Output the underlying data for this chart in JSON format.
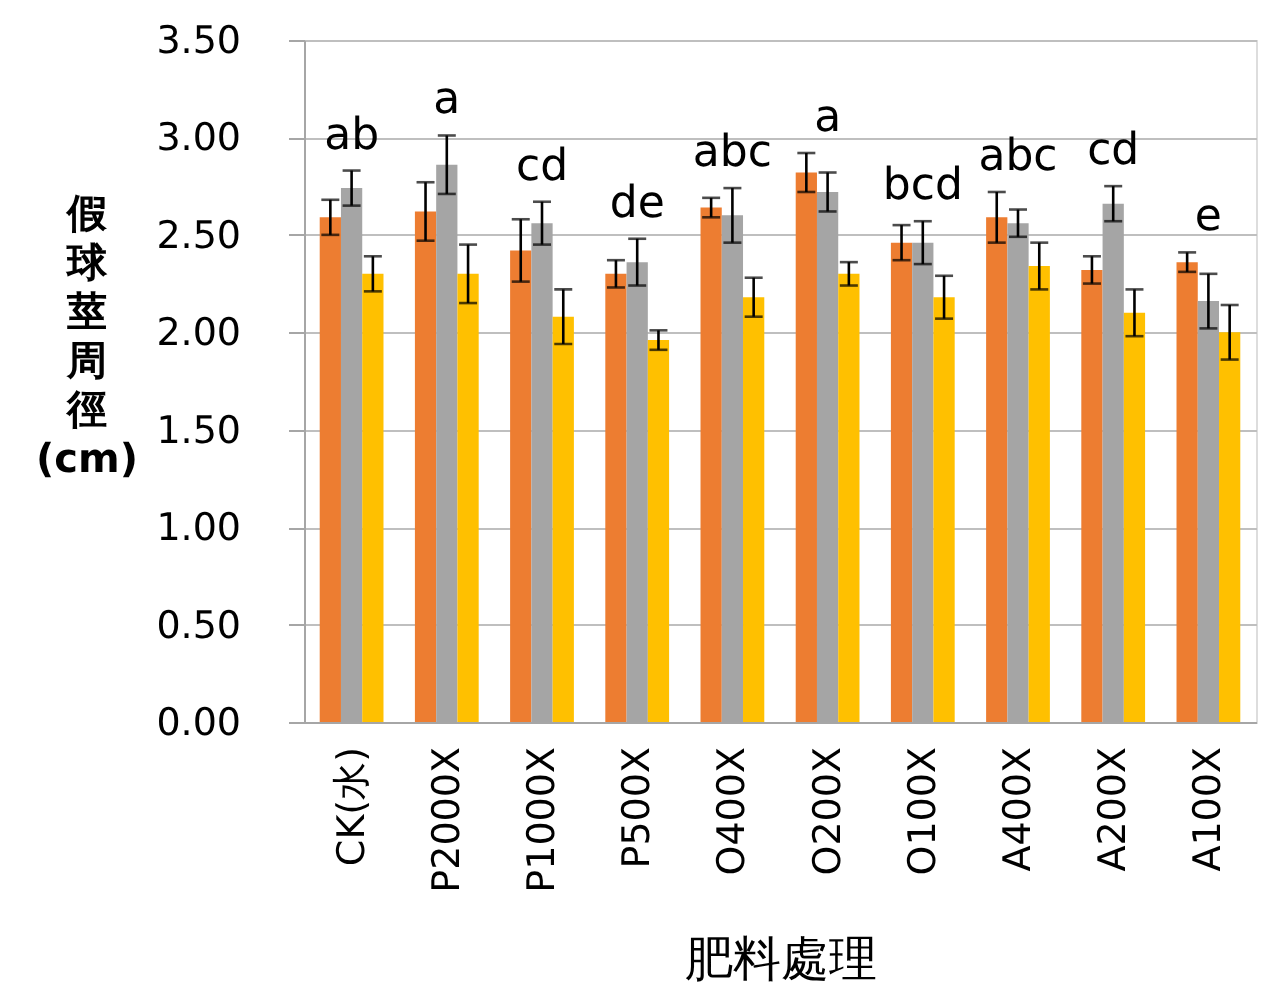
{
  "chart_data": {
    "type": "bar",
    "xlabel": "肥料處理",
    "ylabel": "假球莖周徑(cm)",
    "categories": [
      "CK(水)",
      "P2000X",
      "P1000X",
      "P500X",
      "O400X",
      "O200X",
      "O100X",
      "A400X",
      "A200X",
      "A100X"
    ],
    "series": [
      {
        "color": "#ed7d31",
        "values": [
          2.59,
          2.62,
          2.42,
          2.3,
          2.64,
          2.82,
          2.46,
          2.59,
          2.32,
          2.36
        ],
        "errors": [
          0.09,
          0.15,
          0.16,
          0.07,
          0.05,
          0.1,
          0.09,
          0.13,
          0.07,
          0.05
        ]
      },
      {
        "color": "#a5a5a5",
        "values": [
          2.74,
          2.86,
          2.56,
          2.36,
          2.6,
          2.72,
          2.46,
          2.56,
          2.66,
          2.16
        ],
        "errors": [
          0.09,
          0.15,
          0.11,
          0.12,
          0.14,
          0.1,
          0.11,
          0.07,
          0.09,
          0.14
        ]
      },
      {
        "color": "#ffc000",
        "values": [
          2.3,
          2.3,
          2.08,
          1.96,
          2.18,
          2.3,
          2.18,
          2.34,
          2.1,
          2.0
        ],
        "errors": [
          0.09,
          0.15,
          0.14,
          0.05,
          0.1,
          0.06,
          0.11,
          0.12,
          0.12,
          0.14
        ]
      }
    ],
    "ylim": [
      0,
      3.5
    ],
    "yticks": [
      {
        "value": 0,
        "label": "0.00"
      },
      {
        "value": 0.5,
        "label": "0.50"
      },
      {
        "value": 1,
        "label": "1.00"
      },
      {
        "value": 1.5,
        "label": "1.50"
      },
      {
        "value": 2,
        "label": "2.00"
      },
      {
        "value": 2.5,
        "label": "2.50"
      },
      {
        "value": 3,
        "label": "3.00"
      },
      {
        "value": 3.5,
        "label": "3.50"
      }
    ],
    "grid": "y",
    "annotations": [
      "ab",
      "a",
      "cd",
      "de",
      "abc",
      "a",
      "bcd",
      "abc",
      "cd",
      "e"
    ]
  }
}
